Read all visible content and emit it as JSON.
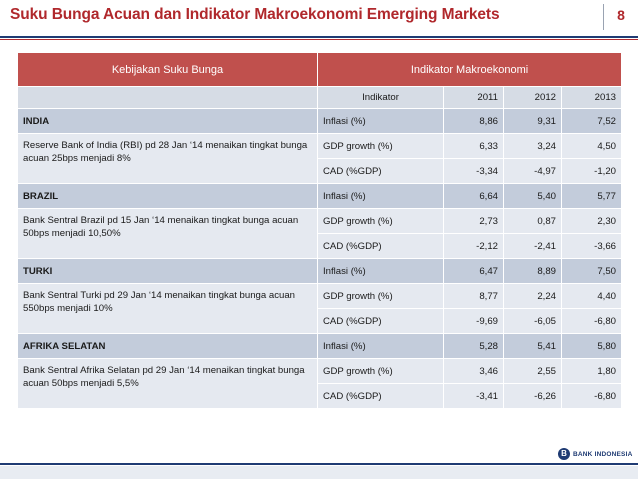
{
  "slide": {
    "title": "Suku Bunga Acuan dan Indikator Makroekonomi Emerging Markets",
    "page_number": "8"
  },
  "table": {
    "headers": {
      "policy": "Kebijakan Suku Bunga",
      "indicators": "Indikator Makroekonomi"
    },
    "subheaders": {
      "indicator": "Indikator",
      "y2011": "2011",
      "y2012": "2012",
      "y2013": "2013"
    },
    "countries": [
      {
        "name": "INDIA",
        "policy": "Reserve Bank of India (RBI) pd 28 Jan ‘14 menaikan tingkat bunga acuan 25bps menjadi 8%",
        "rows": [
          {
            "indicator": "Inflasi (%)",
            "v2011": "8,86",
            "v2012": "9,31",
            "v2013": "7,52"
          },
          {
            "indicator": "GDP growth (%)",
            "v2011": "6,33",
            "v2012": "3,24",
            "v2013": "4,50"
          },
          {
            "indicator": "CAD (%GDP)",
            "v2011": "-3,34",
            "v2012": "-4,97",
            "v2013": "-1,20"
          }
        ]
      },
      {
        "name": "BRAZIL",
        "policy": "Bank Sentral Brazil pd 15 Jan ‘14 menaikan tingkat bunga acuan 50bps menjadi 10,50%",
        "rows": [
          {
            "indicator": "Inflasi (%)",
            "v2011": "6,64",
            "v2012": "5,40",
            "v2013": "5,77"
          },
          {
            "indicator": "GDP growth (%)",
            "v2011": "2,73",
            "v2012": "0,87",
            "v2013": "2,30"
          },
          {
            "indicator": "CAD (%GDP)",
            "v2011": "-2,12",
            "v2012": "-2,41",
            "v2013": "-3,66"
          }
        ]
      },
      {
        "name": "TURKI",
        "policy": "Bank Sentral Turki pd 29 Jan ‘14 menaikan tingkat bunga acuan 550bps menjadi 10%",
        "rows": [
          {
            "indicator": "Inflasi (%)",
            "v2011": "6,47",
            "v2012": "8,89",
            "v2013": "7,50"
          },
          {
            "indicator": "GDP growth (%)",
            "v2011": "8,77",
            "v2012": "2,24",
            "v2013": "4,40"
          },
          {
            "indicator": "CAD (%GDP)",
            "v2011": "-9,69",
            "v2012": "-6,05",
            "v2013": "-6,80"
          }
        ]
      },
      {
        "name": "AFRIKA SELATAN",
        "policy": "Bank Sentral Afrika Selatan pd 29 Jan ‘14 menaikan tingkat bunga acuan 50bps menjadi 5,5%",
        "rows": [
          {
            "indicator": "Inflasi (%)",
            "v2011": "5,28",
            "v2012": "5,41",
            "v2013": "5,80"
          },
          {
            "indicator": "GDP growth (%)",
            "v2011": "3,46",
            "v2012": "2,55",
            "v2013": "1,80"
          },
          {
            "indicator": "CAD (%GDP)",
            "v2011": "-3,41",
            "v2012": "-6,26",
            "v2013": "-6,80"
          }
        ]
      }
    ]
  },
  "footer": {
    "logo_mark": "B",
    "logo_text": "BANK INDONESIA"
  }
}
